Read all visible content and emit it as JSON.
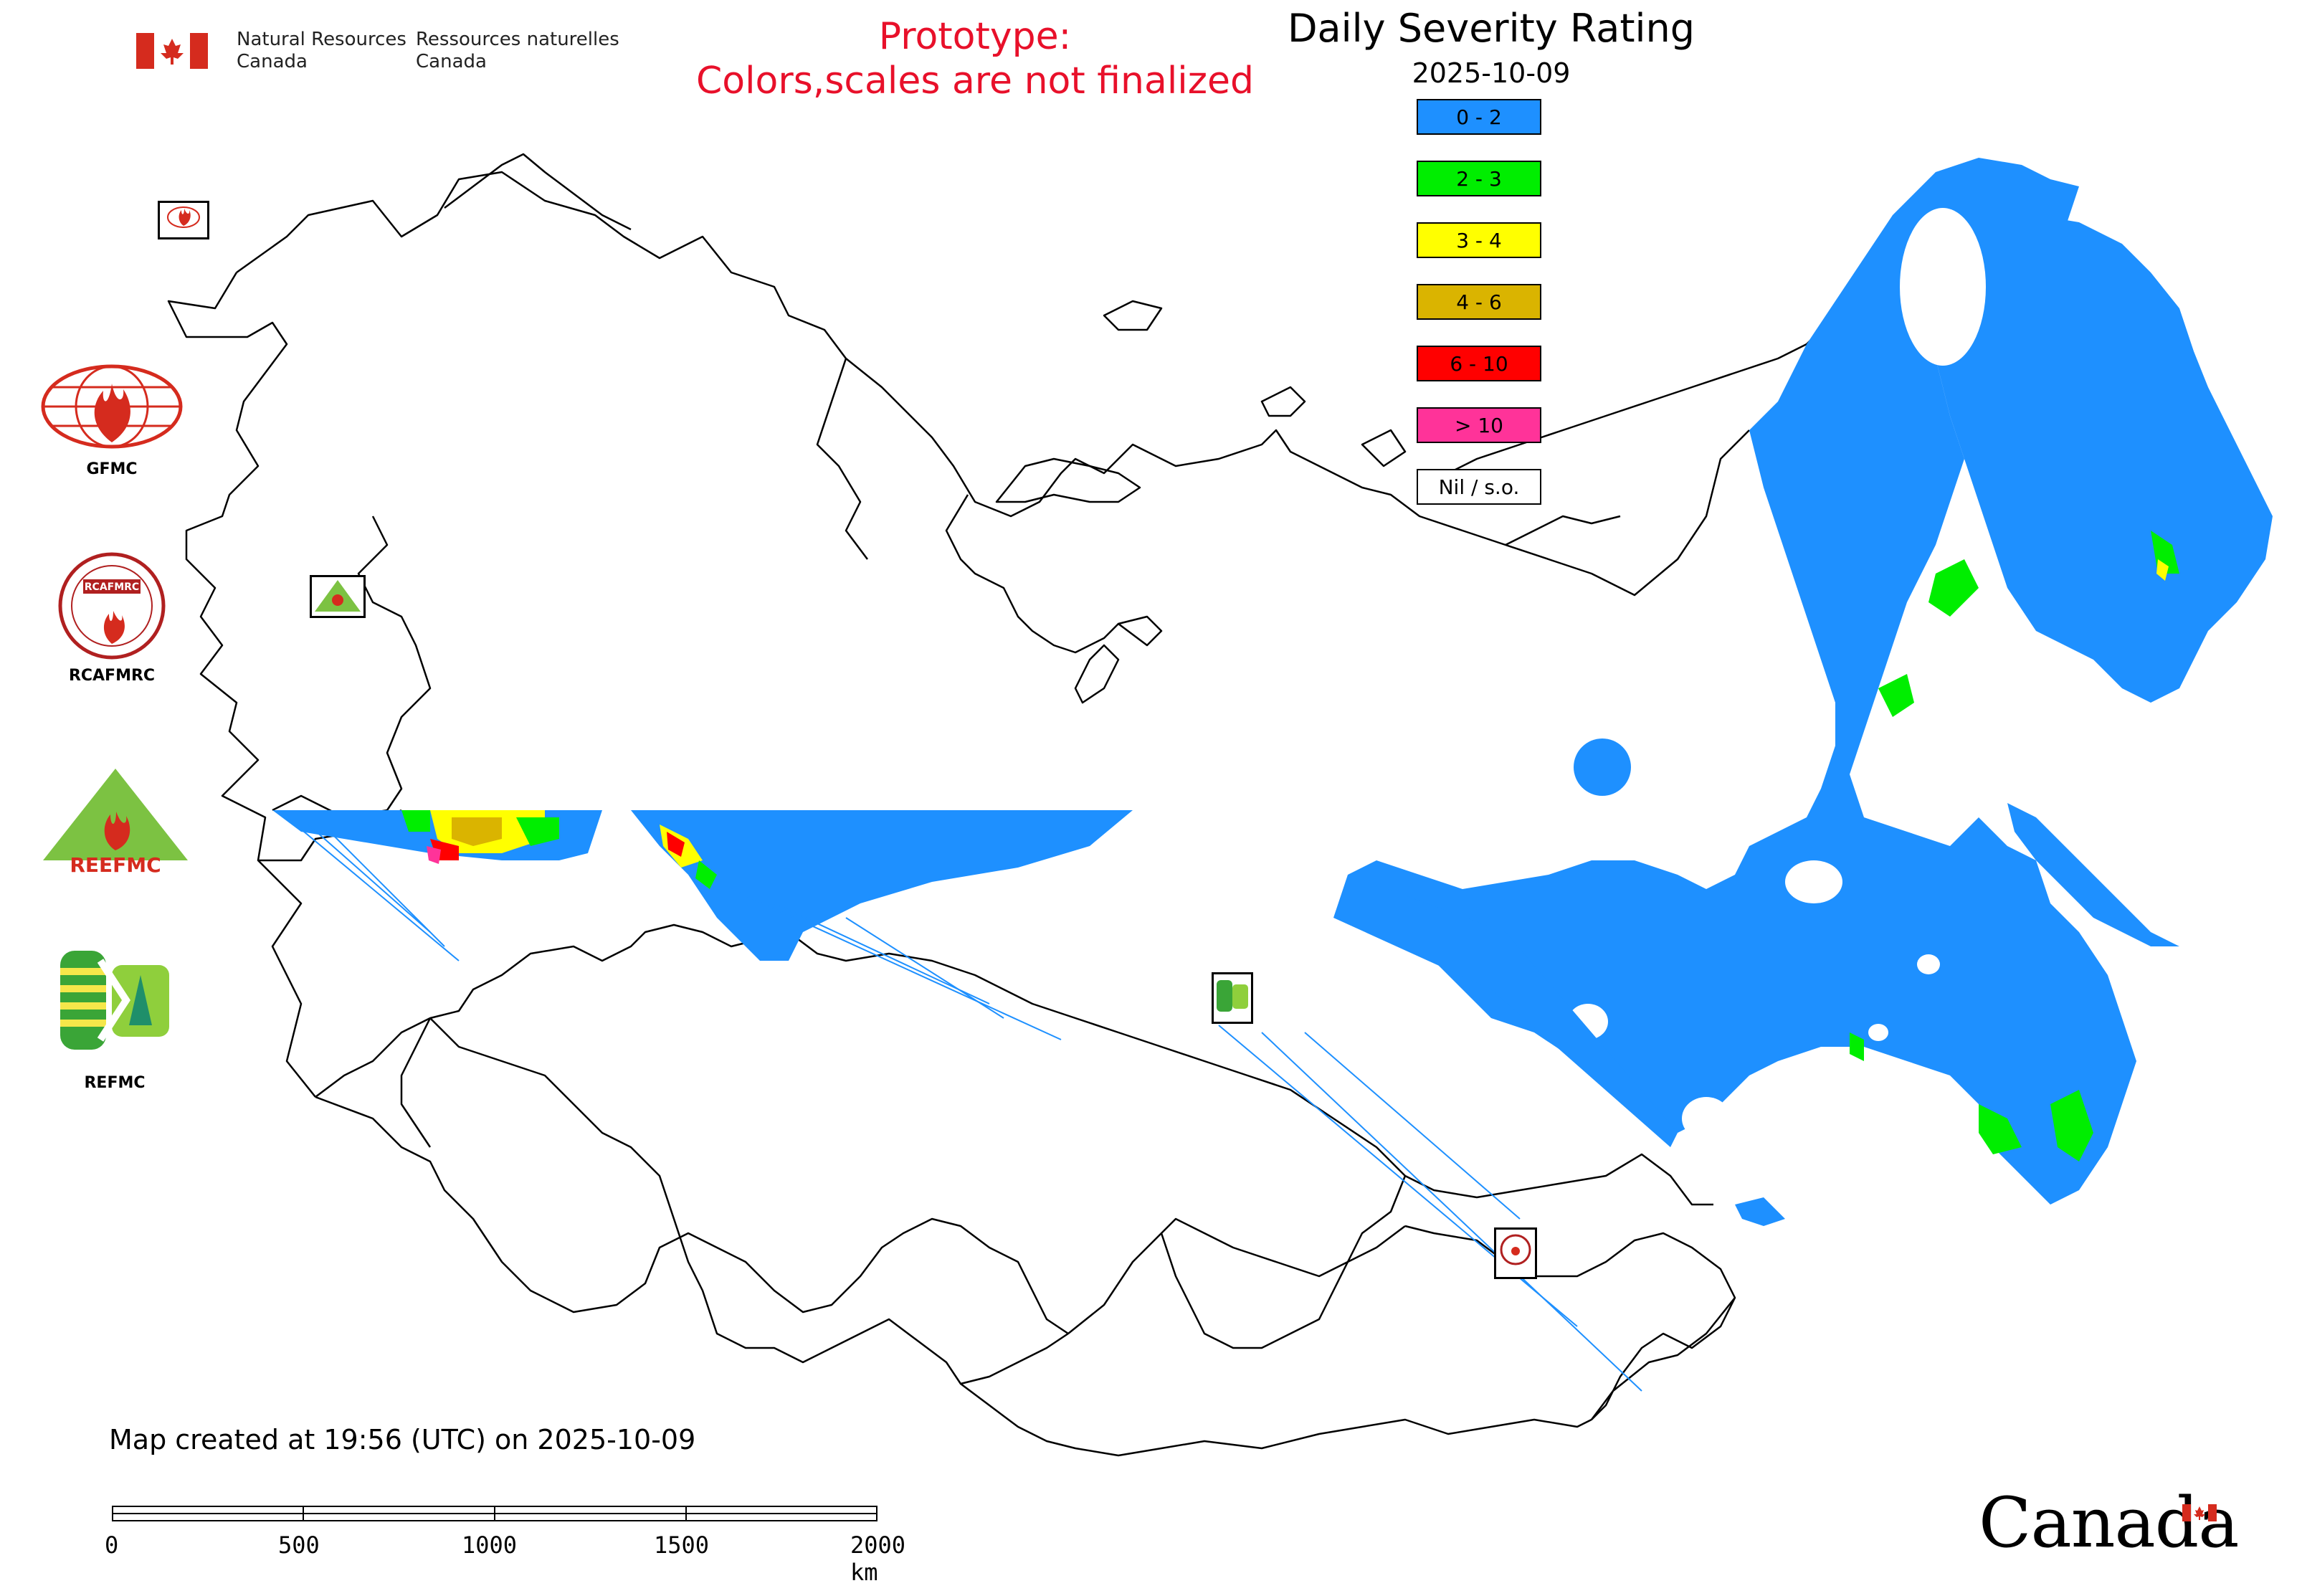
{
  "header": {
    "org_en": "Natural Resources\nCanada",
    "org_fr": "Ressources naturelles\nCanada",
    "prototype_line1": "Prototype:",
    "prototype_line2": "Colors,scales are not finalized",
    "title": "Daily Severity Rating",
    "date": "2025-10-09"
  },
  "legend": [
    {
      "label": "0 - 2",
      "color": "#1e90ff"
    },
    {
      "label": "2 - 3",
      "color": "#00ee00"
    },
    {
      "label": "3 - 4",
      "color": "#ffff00"
    },
    {
      "label": "4 - 6",
      "color": "#dab400"
    },
    {
      "label": "6 - 10",
      "color": "#ff0000"
    },
    {
      "label": "> 10",
      "color": "#ff3399"
    },
    {
      "label": "Nil / s.o.",
      "color": "#ffffff"
    }
  ],
  "logos": {
    "gfmc": "GFMC",
    "rcafmrc": "RCAFMRC",
    "reefmc_word": "REEFMC",
    "refmc": "REFMC"
  },
  "footer": {
    "created": "Map created at 19:56 (UTC) on 2025-10-09",
    "scale_labels": [
      "0",
      "500",
      "1000",
      "1500",
      "2000 km"
    ],
    "wordmark": "Canada"
  },
  "colors": {
    "danger_low": "#1e90ff",
    "danger_moderate": "#00ee00",
    "danger_high": "#ffff00",
    "prototype_text": "#e8102a",
    "flag_red": "#d52b1e"
  }
}
